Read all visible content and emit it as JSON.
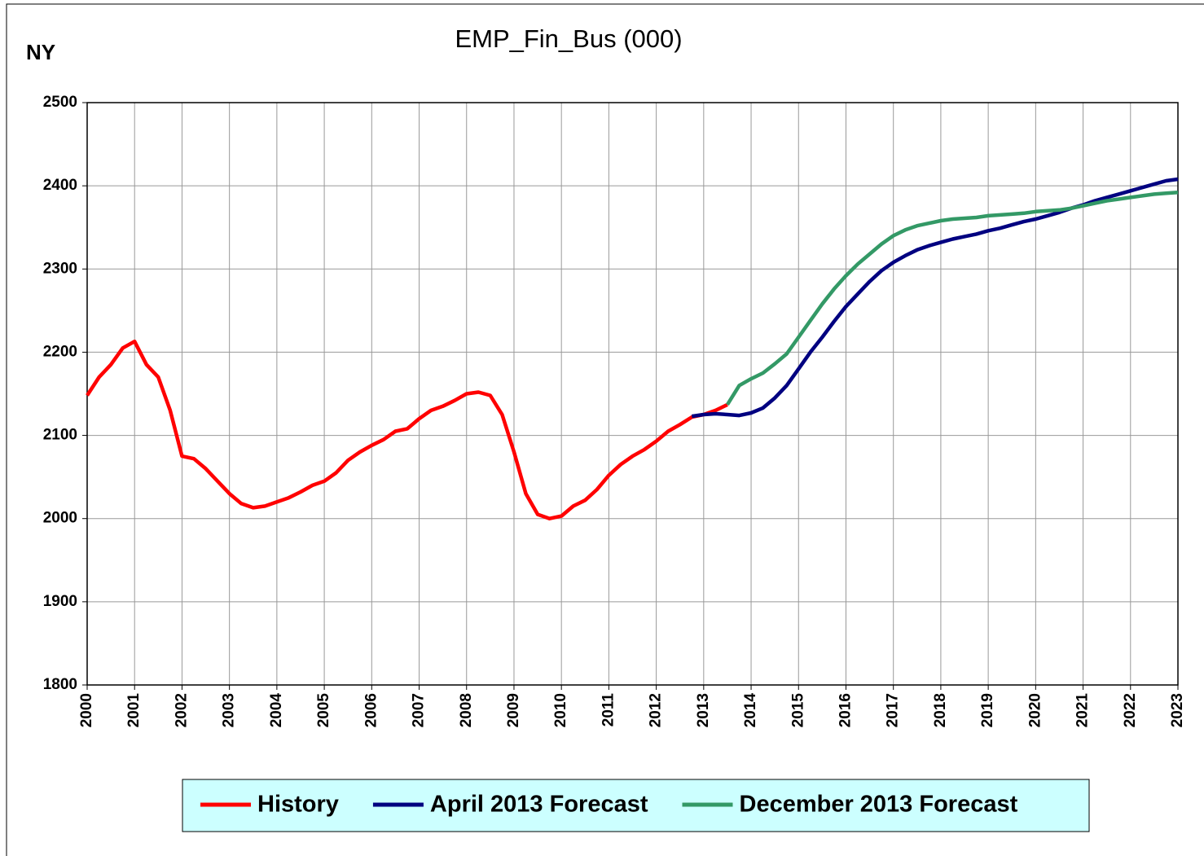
{
  "chart_data": {
    "type": "line",
    "title": "EMP_Fin_Bus (000)",
    "region_label": "NY",
    "x": [
      2000,
      2000.25,
      2000.5,
      2000.75,
      2001,
      2001.25,
      2001.5,
      2001.75,
      2002,
      2002.25,
      2002.5,
      2002.75,
      2003,
      2003.25,
      2003.5,
      2003.75,
      2004,
      2004.25,
      2004.5,
      2004.75,
      2005,
      2005.25,
      2005.5,
      2005.75,
      2006,
      2006.25,
      2006.5,
      2006.75,
      2007,
      2007.25,
      2007.5,
      2007.75,
      2008,
      2008.25,
      2008.5,
      2008.75,
      2009,
      2009.25,
      2009.5,
      2009.75,
      2010,
      2010.25,
      2010.5,
      2010.75,
      2011,
      2011.25,
      2011.5,
      2011.75,
      2012,
      2012.25,
      2012.5,
      2012.75,
      2013,
      2013.25,
      2013.5,
      2013.75,
      2014,
      2014.25,
      2014.5,
      2014.75,
      2015,
      2015.25,
      2015.5,
      2015.75,
      2016,
      2016.25,
      2016.5,
      2016.75,
      2017,
      2017.25,
      2017.5,
      2017.75,
      2018,
      2018.25,
      2018.5,
      2018.75,
      2019,
      2019.25,
      2019.5,
      2019.75,
      2020,
      2020.25,
      2020.5,
      2020.75,
      2021,
      2021.25,
      2021.5,
      2021.75,
      2022,
      2022.25,
      2022.5,
      2022.75,
      2023
    ],
    "series": [
      {
        "name": "History",
        "color": "#ff0000",
        "values": [
          2148,
          2170,
          2185,
          2205,
          2213,
          2185,
          2170,
          2130,
          2075,
          2072,
          2060,
          2045,
          2030,
          2018,
          2013,
          2015,
          2020,
          2025,
          2032,
          2040,
          2045,
          2055,
          2070,
          2080,
          2088,
          2095,
          2105,
          2108,
          2120,
          2130,
          2135,
          2142,
          2150,
          2152,
          2148,
          2125,
          2080,
          2030,
          2005,
          2000,
          2003,
          2015,
          2022,
          2035,
          2052,
          2065,
          2075,
          2083,
          2093,
          2105,
          2113,
          2122,
          2125,
          2130,
          2137,
          null,
          null,
          null,
          null,
          null,
          null,
          null,
          null,
          null,
          null,
          null,
          null,
          null,
          null,
          null,
          null,
          null,
          null,
          null,
          null,
          null,
          null,
          null,
          null,
          null,
          null,
          null,
          null,
          null,
          null,
          null,
          null,
          null,
          null,
          null,
          null,
          null,
          null
        ]
      },
      {
        "name": "April 2013 Forecast",
        "color": "#000080",
        "values": [
          null,
          null,
          null,
          null,
          null,
          null,
          null,
          null,
          null,
          null,
          null,
          null,
          null,
          null,
          null,
          null,
          null,
          null,
          null,
          null,
          null,
          null,
          null,
          null,
          null,
          null,
          null,
          null,
          null,
          null,
          null,
          null,
          null,
          null,
          null,
          null,
          null,
          null,
          null,
          null,
          null,
          null,
          null,
          null,
          null,
          null,
          null,
          null,
          null,
          null,
          null,
          2123,
          2125,
          2126,
          2125,
          2124,
          2127,
          2133,
          2145,
          2160,
          2180,
          2200,
          2218,
          2237,
          2255,
          2270,
          2285,
          2298,
          2308,
          2316,
          2323,
          2328,
          2332,
          2336,
          2339,
          2342,
          2346,
          2349,
          2353,
          2357,
          2360,
          2364,
          2368,
          2373,
          2377,
          2382,
          2386,
          2390,
          2394,
          2398,
          2402,
          2406,
          2408
        ]
      },
      {
        "name": "December 2013 Forecast",
        "color": "#339966",
        "values": [
          null,
          null,
          null,
          null,
          null,
          null,
          null,
          null,
          null,
          null,
          null,
          null,
          null,
          null,
          null,
          null,
          null,
          null,
          null,
          null,
          null,
          null,
          null,
          null,
          null,
          null,
          null,
          null,
          null,
          null,
          null,
          null,
          null,
          null,
          null,
          null,
          null,
          null,
          null,
          null,
          null,
          null,
          null,
          null,
          null,
          null,
          null,
          null,
          null,
          null,
          null,
          null,
          null,
          null,
          2137,
          2160,
          2168,
          2175,
          2186,
          2198,
          2218,
          2238,
          2258,
          2276,
          2292,
          2306,
          2318,
          2330,
          2340,
          2347,
          2352,
          2355,
          2358,
          2360,
          2361,
          2362,
          2364,
          2365,
          2366,
          2367,
          2369,
          2370,
          2371,
          2373,
          2376,
          2379,
          2382,
          2384,
          2386,
          2388,
          2390,
          2391,
          2392
        ]
      }
    ],
    "xlim": [
      2000,
      2023
    ],
    "xticks": [
      2000,
      2001,
      2002,
      2003,
      2004,
      2005,
      2006,
      2007,
      2008,
      2009,
      2010,
      2011,
      2012,
      2013,
      2014,
      2015,
      2016,
      2017,
      2018,
      2019,
      2020,
      2021,
      2022,
      2023
    ],
    "ylim": [
      1800,
      2500
    ],
    "yticks": [
      1800,
      1900,
      2000,
      2100,
      2200,
      2300,
      2400,
      2500
    ],
    "grid": true,
    "legend": "bottom"
  }
}
